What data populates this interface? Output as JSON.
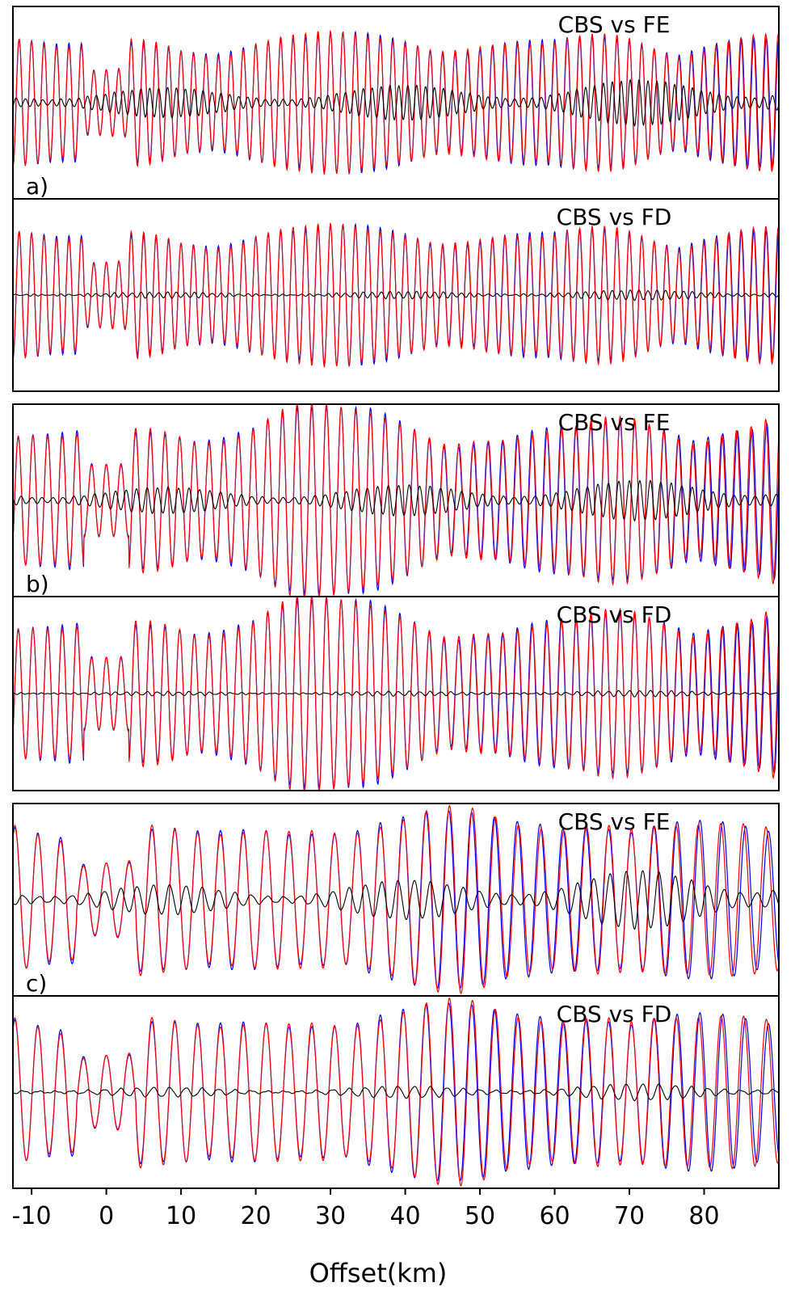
{
  "chart_data": {
    "type": "line",
    "xlabel": "Offset(km)",
    "xlim": [
      -12.5,
      90
    ],
    "xticks": [
      -10,
      0,
      10,
      20,
      30,
      40,
      50,
      60,
      70,
      80
    ],
    "xtick_labels": [
      "-10",
      "0",
      "10",
      "20",
      "30",
      "40",
      "50",
      "60",
      "70",
      "80"
    ],
    "grid": false,
    "colors": {
      "reference": "#0000ff",
      "comparison": "#ff0000",
      "difference": "#000000"
    },
    "groups": [
      {
        "label": "a)",
        "panels": [
          {
            "title": "CBS vs FE",
            "wave": {
              "seed": 11,
              "freq": 1.32,
              "mismatch": 0.35,
              "residual": 0.16,
              "residual_growth": 0.25,
              "gap": [
                -3,
                3
              ]
            }
          },
          {
            "title": "CBS vs FD",
            "wave": {
              "seed": 11,
              "freq": 1.32,
              "mismatch": 0.28,
              "residual": 0.03,
              "residual_growth": 0.35,
              "gap": [
                -3,
                3
              ]
            }
          }
        ]
      },
      {
        "label": "b)",
        "panels": [
          {
            "title": "CBS vs FE",
            "wave": {
              "seed": 23,
              "freq": 1.12,
              "mismatch": 0.5,
              "residual": 0.14,
              "residual_growth": 0.25,
              "gap": [
                -3,
                3
              ]
            }
          },
          {
            "title": "CBS vs FD",
            "wave": {
              "seed": 23,
              "freq": 1.12,
              "mismatch": 0.4,
              "residual": 0.02,
              "residual_growth": 0.25,
              "gap": [
                -3,
                3
              ]
            }
          }
        ]
      },
      {
        "label": "c)",
        "panels": [
          {
            "title": "CBS vs FE",
            "wave": {
              "seed": 37,
              "freq": 0.72,
              "mismatch": 0.7,
              "residual": 0.16,
              "residual_growth": 0.45,
              "gap": [
                -4,
                4
              ]
            }
          },
          {
            "title": "CBS vs FD",
            "wave": {
              "seed": 37,
              "freq": 0.72,
              "mismatch": 0.6,
              "residual": 0.05,
              "residual_growth": 0.35,
              "gap": [
                -4,
                4
              ]
            }
          }
        ]
      }
    ]
  }
}
